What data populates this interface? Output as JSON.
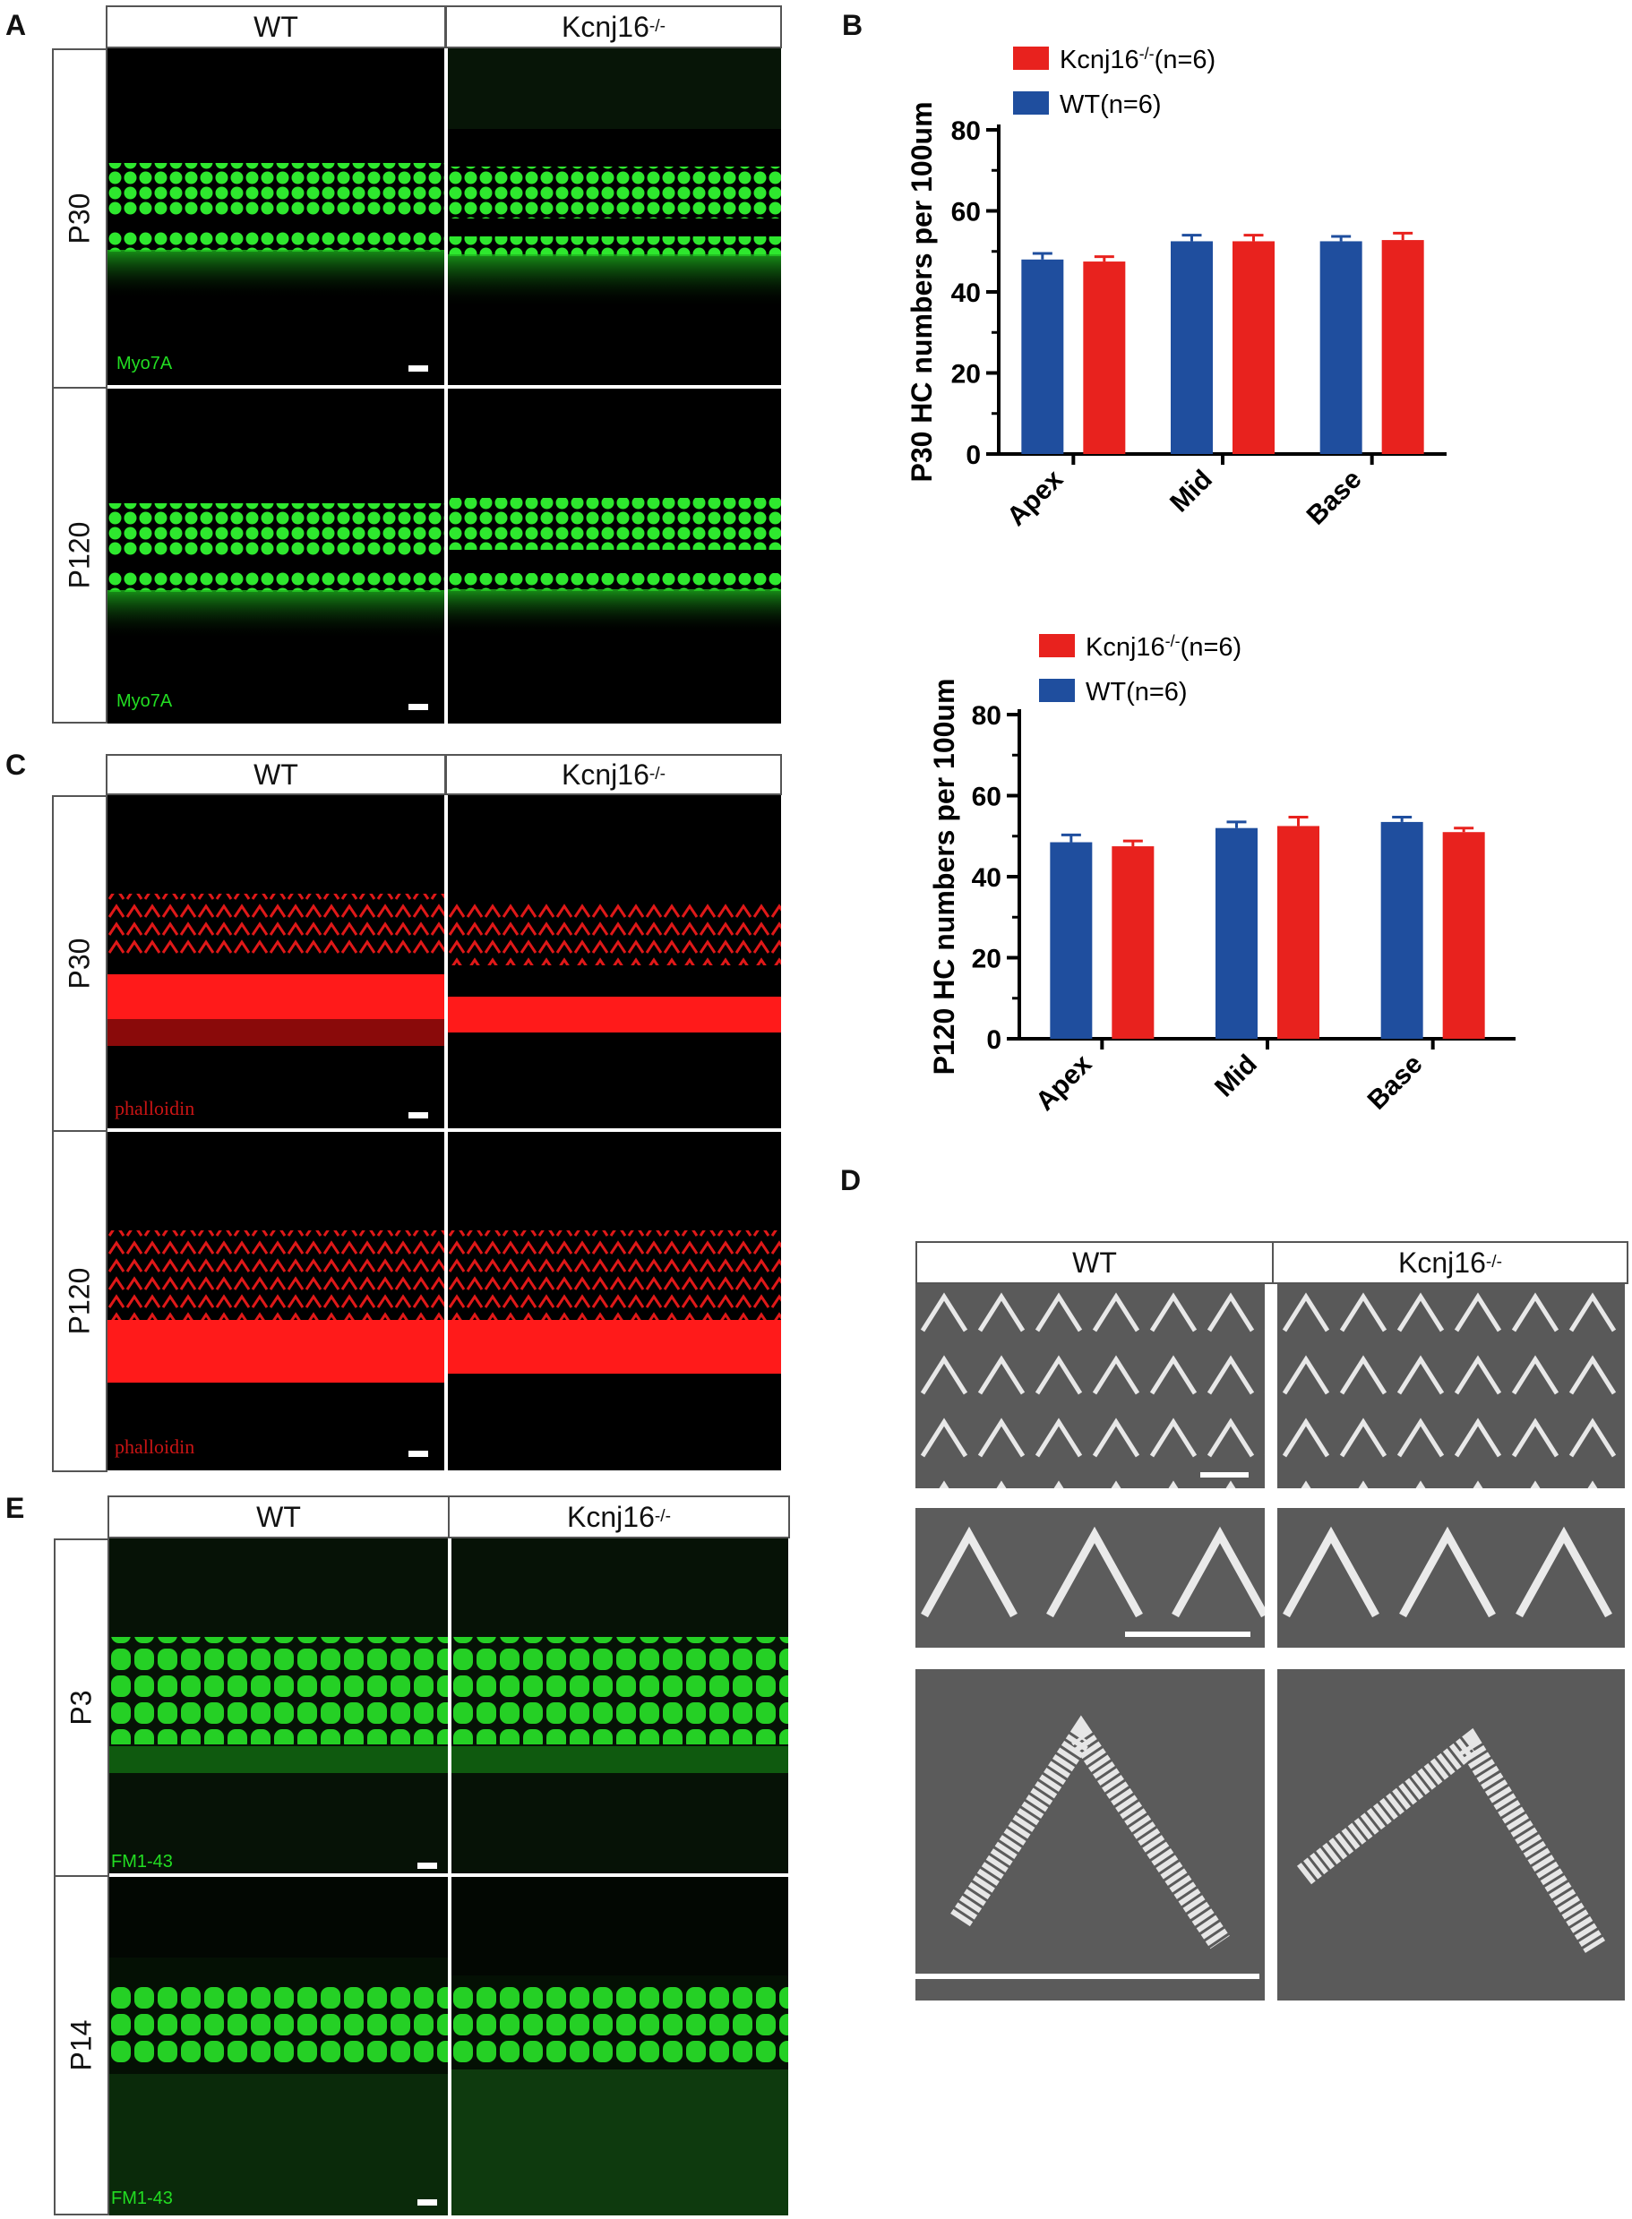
{
  "panels": {
    "A": {
      "label": "A",
      "columns": [
        "WT",
        "Kcnj16"
      ],
      "column_sup": "-/-",
      "rows": [
        "P30",
        "P120"
      ],
      "stain": "Myo7A",
      "colors": {
        "signal": "#22dd22"
      }
    },
    "B": {
      "label": "B"
    },
    "C": {
      "label": "C",
      "columns": [
        "WT",
        "Kcnj16"
      ],
      "column_sup": "-/-",
      "rows": [
        "P30",
        "P120"
      ],
      "stain": "phalloidin",
      "colors": {
        "signal": "#ff1a1a"
      }
    },
    "D": {
      "label": "D",
      "columns": [
        "WT",
        "Kcnj16"
      ],
      "column_sup": "-/-"
    },
    "E": {
      "label": "E",
      "columns": [
        "WT",
        "Kcnj16"
      ],
      "column_sup": "-/-",
      "rows": [
        "P3",
        "P14"
      ],
      "stain": "FM1-43",
      "colors": {
        "signal": "#22cc22"
      }
    }
  },
  "chart_data": [
    {
      "type": "bar",
      "ylabel": "P30 HC numbers per 100um",
      "categories": [
        "Apex",
        "Mid",
        "Base"
      ],
      "ylim": [
        0,
        80
      ],
      "yticks": [
        0,
        20,
        40,
        60,
        80
      ],
      "series": [
        {
          "name": "WT(n=6)",
          "color": "#1f4e9e",
          "values": [
            48,
            52.5,
            52.5
          ],
          "errors": [
            1.5,
            1.5,
            1.2
          ]
        },
        {
          "name": "Kcnj16-/-(n=6)",
          "name_main": "Kcnj16",
          "name_sup": "-/-",
          "name_suffix": "(n=6)",
          "color": "#e8221e",
          "values": [
            47.5,
            52.5,
            52.8
          ],
          "errors": [
            1.2,
            1.5,
            1.7
          ]
        }
      ],
      "legend_order": [
        1,
        0
      ]
    },
    {
      "type": "bar",
      "ylabel": "P120 HC numbers per 100um",
      "categories": [
        "Apex",
        "Mid",
        "Base"
      ],
      "ylim": [
        0,
        80
      ],
      "yticks": [
        0,
        20,
        40,
        60,
        80
      ],
      "series": [
        {
          "name": "WT(n=6)",
          "color": "#1f4e9e",
          "values": [
            48.5,
            52,
            53.5
          ],
          "errors": [
            1.8,
            1.5,
            1.2
          ]
        },
        {
          "name": "Kcnj16-/-(n=6)",
          "name_main": "Kcnj16",
          "name_sup": "-/-",
          "name_suffix": "(n=6)",
          "color": "#e8221e",
          "values": [
            47.5,
            52.5,
            51
          ],
          "errors": [
            1.3,
            2.2,
            1.0
          ]
        }
      ],
      "legend_order": [
        1,
        0
      ]
    }
  ]
}
